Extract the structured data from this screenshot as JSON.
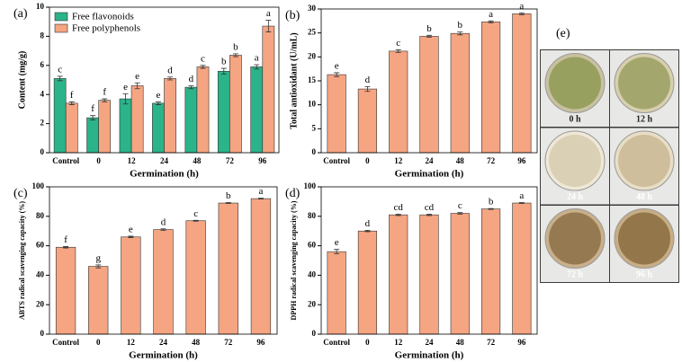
{
  "chart_data": [
    {
      "type": "bar",
      "panel_label": "(a)",
      "xlabel": "Germination (h)",
      "ylabel": "Content (mg/g)",
      "categories": [
        "Control",
        "0",
        "12",
        "24",
        "48",
        "72",
        "96"
      ],
      "series": [
        {
          "name": "Free flavonoids",
          "color": "#2bb38a",
          "values": [
            5.1,
            2.4,
            3.7,
            3.4,
            4.5,
            5.6,
            5.9
          ],
          "errors": [
            0.15,
            0.15,
            0.35,
            0.1,
            0.1,
            0.2,
            0.15
          ],
          "letters": [
            "c",
            "f",
            "e",
            "e",
            "d",
            "b",
            "a"
          ]
        },
        {
          "name": "Free polyphenols",
          "color": "#f5a582",
          "values": [
            3.4,
            3.6,
            4.6,
            5.1,
            5.9,
            6.7,
            8.7
          ],
          "errors": [
            0.1,
            0.1,
            0.2,
            0.1,
            0.1,
            0.1,
            0.4
          ],
          "letters": [
            "f",
            "f",
            "e",
            "d",
            "c",
            "b",
            "a"
          ]
        }
      ],
      "legend": "upper left",
      "ylim": [
        0,
        10
      ],
      "yticks": [
        0,
        2,
        4,
        6,
        8,
        10
      ]
    },
    {
      "type": "bar",
      "panel_label": "(b)",
      "xlabel": "Germination (h)",
      "ylabel": "Total antioxidant (U/mL)",
      "categories": [
        "Control",
        "0",
        "12",
        "24",
        "48",
        "72",
        "96"
      ],
      "color": "#f5a582",
      "values": [
        16.3,
        13.3,
        21.2,
        24.3,
        24.9,
        27.3,
        29.0
      ],
      "errors": [
        0.4,
        0.5,
        0.3,
        0.2,
        0.3,
        0.2,
        0.2
      ],
      "letters": [
        "e",
        "d",
        "c",
        "b",
        "b",
        "a",
        "a"
      ],
      "ylim": [
        0,
        30
      ],
      "yticks": [
        0,
        5,
        10,
        15,
        20,
        25,
        30
      ]
    },
    {
      "type": "bar",
      "panel_label": "(c)",
      "xlabel": "Germination (h)",
      "ylabel": "ABTS radical scavenging capacity (%)",
      "categories": [
        "Control",
        "0",
        "12",
        "24",
        "48",
        "72",
        "96"
      ],
      "color": "#f5a582",
      "values": [
        59,
        46,
        66,
        71,
        77,
        89,
        92
      ],
      "errors": [
        0.5,
        1,
        0.5,
        0.5,
        0.3,
        0.3,
        0.3
      ],
      "letters": [
        "f",
        "g",
        "e",
        "d",
        "c",
        "b",
        "a"
      ],
      "ylim": [
        0,
        100
      ],
      "yticks": [
        0,
        20,
        40,
        60,
        80,
        100
      ]
    },
    {
      "type": "bar",
      "panel_label": "(d)",
      "xlabel": "Germination (h)",
      "ylabel": "DPPH radical scavenging capacity (%)",
      "categories": [
        "Control",
        "0",
        "12",
        "24",
        "48",
        "72",
        "96"
      ],
      "color": "#f5a582",
      "values": [
        56,
        70,
        81,
        81,
        82,
        85,
        89
      ],
      "errors": [
        1.5,
        0.5,
        0.5,
        0.5,
        0.5,
        0.3,
        0.3
      ],
      "letters": [
        "e",
        "d",
        "cd",
        "cd",
        "c",
        "b",
        "a"
      ],
      "ylim": [
        0,
        100
      ],
      "yticks": [
        0,
        20,
        40,
        60,
        80,
        100
      ]
    }
  ],
  "image_panel": {
    "label": "(e)",
    "captions": [
      "0 h",
      "12 h",
      "24 h",
      "48 h",
      "72 h",
      "96 h"
    ]
  }
}
